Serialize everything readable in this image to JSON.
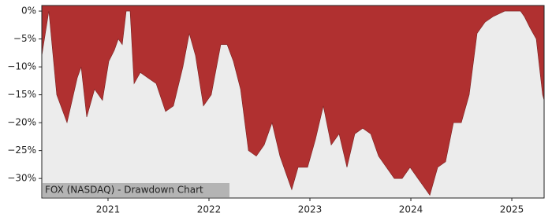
{
  "chart_data": {
    "type": "area",
    "title": "FOX (NASDAQ) - Drawdown Chart",
    "color": "#b03030",
    "x": [
      2020.344,
      2020.414,
      2020.492,
      2020.594,
      2020.695,
      2020.734,
      2020.789,
      2020.867,
      2020.945,
      2021.008,
      2021.063,
      2021.102,
      2021.141,
      2021.18,
      2021.219,
      2021.258,
      2021.32,
      2021.398,
      2021.477,
      2021.57,
      2021.648,
      2021.742,
      2021.805,
      2021.867,
      2021.945,
      2022.023,
      2022.117,
      2022.18,
      2022.242,
      2022.313,
      2022.391,
      2022.469,
      2022.547,
      2022.625,
      2022.703,
      2022.82,
      2022.883,
      2022.977,
      2023.055,
      2023.133,
      2023.211,
      2023.289,
      2023.367,
      2023.445,
      2023.523,
      2023.602,
      2023.68,
      2023.758,
      2023.836,
      2023.914,
      2023.992,
      2024.07,
      2024.188,
      2024.266,
      2024.344,
      2024.422,
      2024.5,
      2024.578,
      2024.656,
      2024.734,
      2024.813,
      2024.93,
      2025.086,
      2025.125,
      2025.18,
      2025.242,
      2025.305,
      2025.32
    ],
    "values": [
      -8,
      0,
      -15,
      -20,
      -12,
      -10,
      -19,
      -14,
      -16,
      -9,
      -7,
      -5,
      -6,
      0,
      0,
      -13,
      -11,
      -12,
      -13,
      -18,
      -17,
      -10,
      -4,
      -8,
      -17,
      -15,
      -6,
      -6,
      -9,
      -14,
      -25,
      -26,
      -24,
      -20,
      -26,
      -32,
      -28,
      -28,
      -23,
      -17,
      -24,
      -22,
      -28,
      -22,
      -21,
      -22,
      -26,
      -28,
      -30,
      -30,
      -28,
      -30,
      -33,
      -28,
      -27,
      -20,
      -20,
      -15,
      -4,
      -2,
      -1,
      0,
      0,
      -1,
      -3,
      -5,
      -15,
      -16
    ],
    "xlim": [
      2020.344,
      2025.32
    ],
    "ylim": [
      -33.5,
      1
    ],
    "xticks": [
      2021,
      2022,
      2023,
      2024,
      2025
    ],
    "yticks": [
      {
        "value": 0,
        "label": "0%"
      },
      {
        "value": -5,
        "label": "−5%"
      },
      {
        "value": -10,
        "label": "−10%"
      },
      {
        "value": -15,
        "label": "−15%"
      },
      {
        "value": -20,
        "label": "−20%"
      },
      {
        "value": -25,
        "label": "−25%"
      },
      {
        "value": -30,
        "label": "−30%"
      }
    ]
  }
}
